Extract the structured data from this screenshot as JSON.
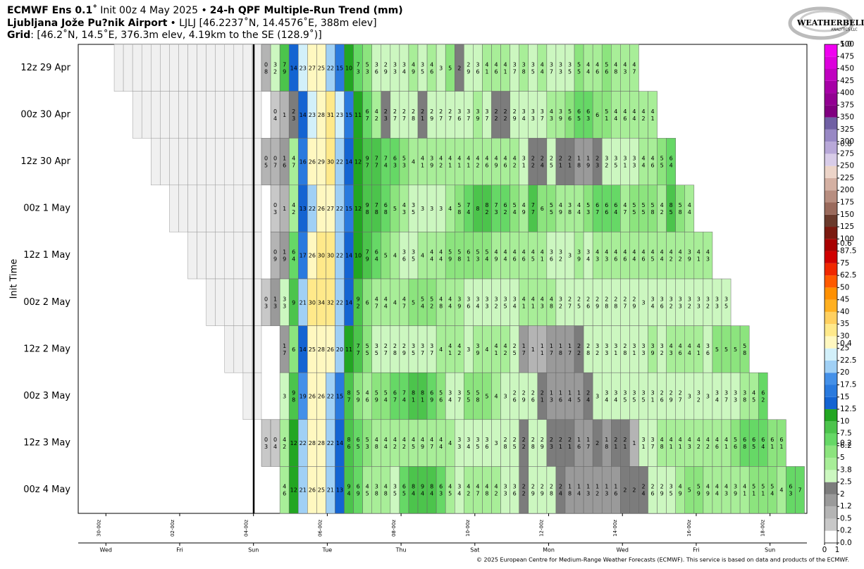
{
  "header": {
    "model": "ECMWF Ens 0.1˚",
    "init": "Init 00z 4 May 2025 •",
    "product": "24-h QPF Multiple-Run Trend (mm)",
    "station": "Ljubljana Jože Pu?nik Airport",
    "station_info": "• LJLJ [46.2237˚N, 14.4576˚E, 388m elev]",
    "grid_label": "Grid",
    "grid_info": ": [46.2˚N, 14.5˚E, 376.3m elev, 4.19km to the SE (128.9˚)]"
  },
  "logo": {
    "name": "WEATHERBELL",
    "sub": "ANALYTICS LLC"
  },
  "footer": "© 2025 European Centre for Medium-Range Weather Forecasts (ECMWF). This service is based on data and products of the ECMWF.",
  "chart_data": {
    "type": "heatmap",
    "ylabel": "Init Time",
    "xlim": [
      -18,
      456
    ],
    "xticks": [
      {
        "value": 0,
        "label": "30-00z"
      },
      {
        "value": 48,
        "label": "02-00z"
      },
      {
        "value": 96,
        "label": "04-00z"
      },
      {
        "value": 144,
        "label": "06-00z"
      },
      {
        "value": 192,
        "label": "08-00z"
      },
      {
        "value": 240,
        "label": "10-00z"
      },
      {
        "value": 288,
        "label": "12-00z"
      },
      {
        "value": 336,
        "label": "14-00z"
      },
      {
        "value": 384,
        "label": "16-00z"
      },
      {
        "value": 432,
        "label": "18-00z"
      }
    ],
    "day_labels": [
      "Wed",
      "Fri",
      "Sun",
      "Tue",
      "Thu",
      "Sat",
      "Mon",
      "Wed",
      "Fri",
      "Sun"
    ],
    "rows": [
      {
        "label": "12z 29 Apr",
        "values": [
          0.8,
          3.2,
          7.9,
          14,
          23,
          27,
          25,
          22,
          15,
          10,
          7.3,
          5.3,
          3.6,
          2.9,
          3.3,
          3.4,
          4.9,
          3.5,
          4.6,
          3,
          5,
          2,
          2.9,
          3.6,
          4.1,
          4.6,
          4.1,
          3.7,
          3.8,
          3.5,
          4.4,
          3.7,
          3.3,
          3.5,
          5.5,
          4.4,
          4.6,
          5.6,
          4.8,
          4.3,
          4.7
        ],
        "value_labels": [
          "0 8",
          "3 2",
          "7 9",
          "14",
          "23",
          "27",
          "25",
          "22",
          "15",
          "10",
          "7 3",
          "5 3",
          "3 6",
          "2 9",
          "3 3",
          "3 4",
          "4 9",
          "3 5",
          "4 6",
          "3",
          "5",
          "2",
          "2 9",
          "3 6",
          "4 1",
          "4 6",
          "4 1",
          "3 7",
          "3 8",
          "3 5",
          "4 4",
          "3 7",
          "3 3",
          "3 5",
          "5 5",
          "4 4",
          "4 6",
          "5 6",
          "4 8",
          "4 3",
          "4 7"
        ]
      },
      {
        "label": "00z 30 Apr",
        "values": [
          null,
          0.4,
          1,
          2.3,
          14,
          23,
          28,
          31,
          23,
          15,
          11,
          6.7,
          4.2,
          2.3,
          2.7,
          2.7,
          2.8,
          2.1,
          2.9,
          2.7,
          2.7,
          3.6,
          3.7,
          3.9,
          3.7,
          2.2,
          2.2,
          2.9,
          3.4,
          3.3,
          3.7,
          4.3,
          3.9,
          5.6,
          6.5,
          6.3,
          6,
          5.1,
          4.4,
          4.6,
          4.4,
          4.2,
          4.1
        ],
        "value_labels": [
          null,
          "0 4",
          "1",
          "2 3",
          "14",
          "23",
          "28",
          "31",
          "23",
          "15",
          "11",
          "6 7",
          "4 2",
          "2 3",
          "2 7",
          "2 7",
          "2 8",
          "2 1",
          "2 9",
          "2 7",
          "2 7",
          "3 6",
          "3 7",
          "3 9",
          "3 7",
          "2 2",
          "2 2",
          "2 9",
          "3 4",
          "3 3",
          "3 7",
          "4 3",
          "3 9",
          "5 6",
          "6 5",
          "6 3",
          "6",
          "5 1",
          "4 4",
          "4 6",
          "4 4",
          "4 2",
          "4 1"
        ]
      },
      {
        "label": "12z 30 Apr",
        "values": [
          0.5,
          0.7,
          1.6,
          4.7,
          16,
          26,
          29,
          30,
          22,
          14,
          12,
          9.7,
          7.7,
          7.4,
          6.3,
          5.3,
          4,
          4.1,
          3.9,
          4.2,
          4.1,
          4.1,
          4.1,
          4.2,
          4.6,
          4.9,
          4.6,
          4.2,
          3.1,
          2.2,
          2.4,
          2.5,
          2.1,
          2.1,
          1.8,
          1.9,
          2.3,
          3.2,
          3.5,
          3.1,
          3.3,
          4.4,
          4.6,
          5.5,
          6.4
        ],
        "value_labels": [
          "0 5",
          "0 7",
          "1 6",
          "4 7",
          "16",
          "26",
          "29",
          "30",
          "22",
          "14",
          "12",
          "9 7",
          "7 7",
          "7 4",
          "6 3",
          "5 3",
          "4",
          "4 1",
          "3 9",
          "4 2",
          "4 1",
          "4 1",
          "4 1",
          "4 2",
          "4 6",
          "4 9",
          "4 6",
          "4 2",
          "3 1",
          "2 2",
          "2 4",
          "2 5",
          "2 1",
          "2 1",
          "1 8",
          "1 9",
          "2 3",
          "3 2",
          "3 5",
          "3 1",
          "3 3",
          "4 4",
          "4 6",
          "5 5",
          "6 4"
        ]
      },
      {
        "label": "00z 1 May",
        "values": [
          null,
          0.3,
          1,
          4.2,
          13,
          22,
          26,
          27,
          22,
          15,
          12,
          9.8,
          7.8,
          6.8,
          5,
          4.3,
          3.5,
          3,
          3,
          3,
          4,
          5.8,
          7.4,
          8,
          8.2,
          7.3,
          6.2,
          5.4,
          4.9,
          7.7,
          6,
          5.5,
          4.9,
          3.8,
          4.4,
          5.3,
          6.7,
          6.6,
          6.4,
          4.7,
          5.5,
          5.5,
          5.8,
          4.2,
          8.5,
          5.8,
          4.4
        ],
        "value_labels": [
          null,
          "0 3",
          "1",
          "4 2",
          "13",
          "22",
          "26",
          "27",
          "22",
          "15",
          "12",
          "9 8",
          "7 8",
          "6 8",
          "5",
          "4 3",
          "3 5",
          "3",
          "3",
          "3",
          "4",
          "5 8",
          "7 4",
          "8",
          "8 2",
          "7 3",
          "6 2",
          "5 4",
          "4 9",
          "7 7",
          "6",
          "5 5",
          "4 9",
          "3 8",
          "4 4",
          "5 3",
          "6 7",
          "6 6",
          "6 4",
          "4 7",
          "5 5",
          "5 5",
          "5 8",
          "4 2",
          "8 5",
          "5 8",
          "4 4"
        ]
      },
      {
        "label": "12z 1 May",
        "values": [
          null,
          0.9,
          1.9,
          6.4,
          17,
          26,
          30,
          30,
          22,
          14,
          10,
          7.9,
          6.4,
          5,
          4,
          3.6,
          3.5,
          4,
          4.4,
          4.4,
          5.9,
          5.8,
          6.1,
          5.3,
          5.4,
          4.9,
          4.4,
          4.6,
          4.6,
          4.5,
          4.1,
          3.6,
          3.2,
          3,
          3.9,
          3.4,
          4.3,
          4.3,
          4.6,
          4.6,
          4.4,
          4.6,
          4.5,
          4.4,
          4.2,
          4.2,
          3.9,
          4.1,
          4.3
        ],
        "value_labels": [
          null,
          "0 9",
          "1 9",
          "6 4",
          "17",
          "26",
          "30",
          "30",
          "22",
          "14",
          "10",
          "7 9",
          "6 4",
          "5",
          "4",
          "3 6",
          "3 5",
          "4",
          "4 4",
          "4 4",
          "5 9",
          "5 8",
          "6 1",
          "5 3",
          "5 4",
          "4 9",
          "4 4",
          "4 6",
          "4 6",
          "4 5",
          "4 1",
          "3 6",
          "3 2",
          "3",
          "3 9",
          "3 4",
          "4 3",
          "4 3",
          "4 6",
          "4 6",
          "4 4",
          "4 6",
          "4 5",
          "4 4",
          "4 2",
          "4 2",
          "3 9",
          "4 1",
          "4 3"
        ]
      },
      {
        "label": "00z 2 May",
        "values": [
          0.3,
          1.3,
          3.3,
          9,
          21,
          30,
          34,
          32,
          22,
          14,
          9.2,
          6,
          4.7,
          4.4,
          4,
          4.7,
          5,
          5.4,
          5.2,
          4.8,
          4.4,
          3.9,
          3.6,
          3.4,
          3.3,
          3.2,
          3.5,
          3.4,
          4.1,
          4.1,
          4.3,
          4.8,
          3.2,
          2.7,
          2.5,
          2.6,
          2.9,
          2.8,
          2.8,
          2.7,
          2.9,
          3,
          3.4,
          3.6,
          3.2,
          3.3,
          3.2,
          3.3,
          3.2,
          3.3,
          3.5
        ],
        "value_labels": [
          "0 3",
          "1 3",
          "3 3",
          "9",
          "21",
          "30",
          "34",
          "32",
          "22",
          "14",
          "9 2",
          "6",
          "4 7",
          "4 4",
          "4",
          "4 7",
          "5",
          "5 4",
          "5 2",
          "4 8",
          "4 4",
          "3 9",
          "3 6",
          "3 4",
          "3 3",
          "3 2",
          "3 5",
          "3 4",
          "4 1",
          "4 1",
          "4 3",
          "4 8",
          "3 2",
          "2 7",
          "2 5",
          "2 6",
          "2 9",
          "2 8",
          "2 8",
          "2 7",
          "2 9",
          "3",
          "3 4",
          "3 6",
          "3 2",
          "3 3",
          "3 2",
          "3 3",
          "3 2",
          "3 3",
          "3 5"
        ]
      },
      {
        "label": "12z 2 May",
        "values": [
          null,
          null,
          1.7,
          6,
          14,
          25,
          28,
          26,
          20,
          11,
          7.7,
          5.5,
          3.5,
          2.7,
          2.8,
          2.9,
          3.5,
          3.7,
          3.7,
          4,
          4.1,
          4.2,
          3,
          3.9,
          4,
          4.1,
          4.2,
          2.5,
          1.7,
          1,
          1.1,
          1.7,
          1.8,
          1.7,
          2.2,
          2.8,
          3.2,
          3.3,
          3.1,
          2.8,
          3.1,
          3.3,
          3.9,
          3.2,
          4.3,
          4.6,
          4.4,
          4.1,
          3.6,
          5,
          5,
          5,
          5.8
        ],
        "value_labels": [
          null,
          null,
          "1 7",
          "6",
          "14",
          "25",
          "28",
          "26",
          "20",
          "11",
          "7 7",
          "5 5",
          "3 5",
          "2 7",
          "2 8",
          "2 9",
          "3 5",
          "3 7",
          "3 7",
          "4",
          "4 1",
          "4 2",
          "3",
          "3 9",
          "4",
          "4 1",
          "4 2",
          "2 5",
          "1 7",
          "1",
          "1 1",
          "1 7",
          "1 8",
          "1 7",
          "2 2",
          "2 8",
          "3 2",
          "3 3",
          "3 1",
          "2 8",
          "3 1",
          "3 3",
          "3 9",
          "3 2",
          "4 3",
          "4 6",
          "4 4",
          "4 1",
          "3 6",
          "5",
          "5",
          "5",
          "5 8"
        ]
      },
      {
        "label": "00z 3 May",
        "values": [
          null,
          null,
          3,
          9.8,
          19,
          26,
          26,
          22,
          15,
          8.7,
          5.9,
          4.6,
          5.9,
          5.4,
          6.7,
          7.4,
          8.1,
          8.1,
          6.9,
          5.6,
          3.4,
          3.7,
          5.5,
          5.8,
          5,
          4,
          3,
          2.6,
          2.9,
          2.6,
          2.1,
          1.3,
          1.6,
          1.4,
          1.5,
          2.4,
          3,
          3.4,
          3.4,
          3.5,
          3.5,
          3.5,
          3.1,
          2.6,
          2.9,
          2.7,
          3,
          3.2,
          3,
          3.4,
          3.7,
          3.3,
          3.8,
          4.5,
          6.2
        ],
        "value_labels": [
          null,
          null,
          "3",
          "9 8",
          "19",
          "26",
          "26",
          "22",
          "15",
          "8 7",
          "5 9",
          "4 6",
          "5 9",
          "5 4",
          "6 7",
          "7 4",
          "8 1",
          "8 1",
          "6 9",
          "5 6",
          "3 4",
          "3 7",
          "5 5",
          "5 8",
          "5",
          "4",
          "3",
          "2 6",
          "2 9",
          "2 6",
          "2 1",
          "1 3",
          "1 6",
          "1 4",
          "1 5",
          "2 4",
          "3",
          "3 4",
          "3 4",
          "3 5",
          "3 5",
          "3 5",
          "3 1",
          "2 6",
          "2 9",
          "2 7",
          "3",
          "3 2",
          "3",
          "3 4",
          "3 7",
          "3 3",
          "3 8",
          "4 5",
          "6 2"
        ]
      },
      {
        "label": "12z 3 May",
        "values": [
          0.3,
          0.4,
          4.2,
          12,
          22,
          28,
          28,
          22,
          14,
          8.6,
          6.5,
          5.3,
          4.8,
          4.4,
          4.2,
          4.2,
          4.5,
          4.9,
          4.7,
          4.4,
          4,
          3.3,
          3.4,
          3.5,
          3.6,
          3,
          2.8,
          2.5,
          2.2,
          2.8,
          2.9,
          2.3,
          2.1,
          2.1,
          1.6,
          1.7,
          2,
          1.8,
          2.1,
          2.1,
          1,
          3.1,
          3.7,
          4.8,
          4.1,
          4.1,
          4.3,
          4.2,
          4.2,
          4.6,
          4.1,
          5.6,
          6.8,
          6.5,
          6.4,
          6.1,
          6.1
        ],
        "value_labels": [
          "0 3",
          "0 4",
          "4 2",
          "12",
          "22",
          "28",
          "28",
          "22",
          "14",
          "8 6",
          "6 5",
          "5 3",
          "4 8",
          "4 4",
          "4 2",
          "4 2",
          "4 5",
          "4 9",
          "4 7",
          "4 4",
          "4",
          "3 3",
          "3 4",
          "3 5",
          "3 6",
          "3",
          "2 8",
          "2 5",
          "2 2",
          "2 8",
          "2 9",
          "2 3",
          "2 1",
          "2 1",
          "1 6",
          "1 7",
          "2",
          "1 8",
          "2 1",
          "2 1",
          "1",
          "3 1",
          "3 7",
          "4 8",
          "4 1",
          "4 1",
          "4 3",
          "4 2",
          "4 2",
          "4 6",
          "4 1",
          "5 6",
          "6 8",
          "6 5",
          "6 4",
          "6 1",
          "6 1"
        ]
      },
      {
        "label": "00z 4 May",
        "values": [
          null,
          null,
          4.6,
          12,
          21,
          26,
          25,
          21,
          13,
          9.4,
          6.9,
          4.5,
          3.8,
          4.8,
          3.5,
          6.5,
          8.4,
          9.4,
          8.4,
          6.3,
          4.5,
          3.4,
          4.2,
          4.7,
          4.8,
          4.2,
          3.3,
          3.6,
          2.2,
          2.9,
          2.9,
          2.8,
          2.4,
          1.8,
          1.4,
          1.3,
          1.2,
          1.3,
          1.6,
          2,
          2,
          2.4,
          2.6,
          2.9,
          3.5,
          4.9,
          5,
          5.9,
          4.9,
          4.4,
          4.3,
          3.9,
          4.1,
          5.1,
          5.1,
          5.4,
          4,
          6.3,
          7
        ],
        "value_labels": [
          null,
          null,
          "4 6",
          "12",
          "21",
          "26",
          "25",
          "21",
          "13",
          "9 4",
          "6 9",
          "4 5",
          "3 8",
          "4 8",
          "3 5",
          "6 5",
          "8 4",
          "9 4",
          "8 4",
          "6 3",
          "4 5",
          "3 4",
          "4 2",
          "4 7",
          "4 8",
          "4 2",
          "3 3",
          "3 6",
          "2 2",
          "2 9",
          "2 9",
          "2 8",
          "2 4",
          "1 8",
          "1 4",
          "1 3",
          "1 2",
          "1 3",
          "1 6",
          "2",
          "2",
          "2 4",
          "2 6",
          "2 9",
          "3 5",
          "4 9",
          "5",
          "5 9",
          "4 9",
          "4 4",
          "4 3",
          "3 9",
          "4 1",
          "5 1",
          "5 1",
          "5 4",
          "4",
          "6 3",
          "7"
        ]
      }
    ],
    "colorbar": {
      "levels": [
        {
          "value": 0,
          "label": "0.0"
        },
        0.2,
        0.5,
        1.2,
        2,
        2.5,
        3.8,
        5,
        6.2,
        7.5,
        10,
        12.5,
        15,
        17.5,
        20,
        22.5,
        25,
        30,
        35,
        40,
        45,
        50,
        62.5,
        75,
        87.5,
        100,
        125,
        150,
        175,
        200,
        225,
        250,
        275,
        300,
        325,
        350,
        375,
        400,
        425,
        450,
        475,
        500
      ],
      "colors": [
        "#ffffff",
        "#c8c8c8",
        "#b4b4b4",
        "#9a9a9a",
        "#7c7c7c",
        "#ccf7c0",
        "#a8ee98",
        "#8ce47e",
        "#66d866",
        "#4cc44c",
        "#22a622",
        "#1464d2",
        "#2a7ade",
        "#4490e8",
        "#a0d0f5",
        "#d2f0fa",
        "#fff8c0",
        "#ffe98a",
        "#ffd060",
        "#ffb020",
        "#ff9000",
        "#ff5a00",
        "#f02800",
        "#d00000",
        "#a80000",
        "#7a1a10",
        "#6a3a2c",
        "#9a6a5c",
        "#b88e80",
        "#d4b0a2",
        "#ecd4c8",
        "#d8cce8",
        "#b8a8d8",
        "#9888c4",
        "#7060a4",
        "#800080",
        "#920092",
        "#a600a6",
        "#c000c0",
        "#dc00dc",
        "#f000f0"
      ],
      "y2ticks": [
        0.2,
        0.4,
        0.6,
        0.8,
        {
          "value": 1,
          "label": "1.0"
        }
      ],
      "xticks": [
        0,
        1
      ]
    }
  }
}
